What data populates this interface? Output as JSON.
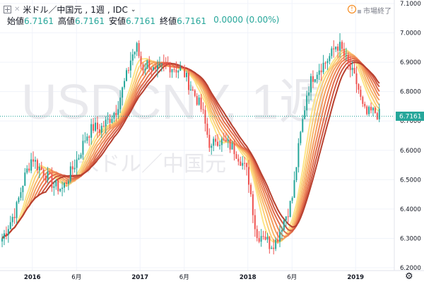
{
  "header": {
    "symbol_desc": "米ドル／中国元",
    "interval": "1週",
    "exchange": "IDC",
    "ohlc": [
      {
        "label": "始値",
        "value": "6.7161"
      },
      {
        "label": "高値",
        "value": "6.7161"
      },
      {
        "label": "安値",
        "value": "6.7161"
      },
      {
        "label": "終値",
        "value": "6.7161"
      }
    ],
    "change": "0.0000 (0.00%)",
    "market_status": "市場終了",
    "icons": [
      "expand-icon",
      "close-icon",
      "chevron-down-icon",
      "alert-icon",
      "gear-icon"
    ]
  },
  "chart_data": {
    "type": "candlestick",
    "title": "",
    "watermark": {
      "symbol": "USDCNY",
      "interval": "1週",
      "description": "米ドル／中国元"
    },
    "y_axis": {
      "min": 6.2,
      "max": 7.1,
      "ticks": [
        "7.1000",
        "7.0000",
        "6.9000",
        "6.8000",
        "6.7000",
        "6.6000",
        "6.5000",
        "6.4000",
        "6.3000",
        "6.2000"
      ]
    },
    "x_axis": {
      "ticks": [
        {
          "label": "2016",
          "x": 2016.0
        },
        {
          "label": "6月",
          "x": 2016.41
        },
        {
          "label": "2017",
          "x": 2017.0
        },
        {
          "label": "6月",
          "x": 2017.41
        },
        {
          "label": "2018",
          "x": 2018.0
        },
        {
          "label": "6月",
          "x": 2018.41
        },
        {
          "label": "2019",
          "x": 2019.0
        }
      ],
      "range": [
        2015.7,
        2019.32
      ]
    },
    "last_price": "6.7161",
    "colors": {
      "up": "#26a69a",
      "down": "#ef5350",
      "last_line": "#26a69a",
      "grid": "#f0f3fa"
    },
    "price_path": [
      [
        2015.72,
        6.3
      ],
      [
        2015.8,
        6.36
      ],
      [
        2015.85,
        6.4
      ],
      [
        2015.92,
        6.5
      ],
      [
        2016.0,
        6.58
      ],
      [
        2016.04,
        6.55
      ],
      [
        2016.1,
        6.53
      ],
      [
        2016.2,
        6.48
      ],
      [
        2016.28,
        6.47
      ],
      [
        2016.35,
        6.52
      ],
      [
        2016.43,
        6.58
      ],
      [
        2016.5,
        6.65
      ],
      [
        2016.57,
        6.68
      ],
      [
        2016.62,
        6.67
      ],
      [
        2016.7,
        6.7
      ],
      [
        2016.78,
        6.74
      ],
      [
        2016.83,
        6.8
      ],
      [
        2016.88,
        6.86
      ],
      [
        2016.92,
        6.92
      ],
      [
        2016.97,
        6.95
      ],
      [
        2017.02,
        6.88
      ],
      [
        2017.08,
        6.9
      ],
      [
        2017.14,
        6.86
      ],
      [
        2017.2,
        6.88
      ],
      [
        2017.26,
        6.89
      ],
      [
        2017.32,
        6.88
      ],
      [
        2017.4,
        6.87
      ],
      [
        2017.46,
        6.82
      ],
      [
        2017.52,
        6.78
      ],
      [
        2017.58,
        6.73
      ],
      [
        2017.62,
        6.66
      ],
      [
        2017.66,
        6.6
      ],
      [
        2017.7,
        6.64
      ],
      [
        2017.76,
        6.63
      ],
      [
        2017.82,
        6.62
      ],
      [
        2017.88,
        6.6
      ],
      [
        2017.93,
        6.57
      ],
      [
        2018.0,
        6.52
      ],
      [
        2018.04,
        6.42
      ],
      [
        2018.08,
        6.3
      ],
      [
        2018.14,
        6.32
      ],
      [
        2018.2,
        6.28
      ],
      [
        2018.26,
        6.29
      ],
      [
        2018.32,
        6.35
      ],
      [
        2018.38,
        6.4
      ],
      [
        2018.42,
        6.45
      ],
      [
        2018.46,
        6.58
      ],
      [
        2018.5,
        6.68
      ],
      [
        2018.55,
        6.8
      ],
      [
        2018.6,
        6.85
      ],
      [
        2018.66,
        6.88
      ],
      [
        2018.72,
        6.9
      ],
      [
        2018.78,
        6.93
      ],
      [
        2018.82,
        6.96
      ],
      [
        2018.86,
        6.95
      ],
      [
        2018.92,
        6.9
      ],
      [
        2018.97,
        6.86
      ],
      [
        2019.02,
        6.82
      ],
      [
        2019.06,
        6.75
      ],
      [
        2019.1,
        6.72
      ],
      [
        2019.14,
        6.73
      ],
      [
        2019.18,
        6.73
      ],
      [
        2019.22,
        6.72
      ]
    ],
    "ma_ribbon": {
      "periods": [
        8,
        10,
        12,
        14,
        16,
        18,
        20,
        22
      ],
      "colors": [
        "#fde588",
        "#fbcf79",
        "#f8b76b",
        "#f49e60",
        "#ee8656",
        "#e26e4c",
        "#d05843",
        "#b8402f"
      ]
    }
  }
}
